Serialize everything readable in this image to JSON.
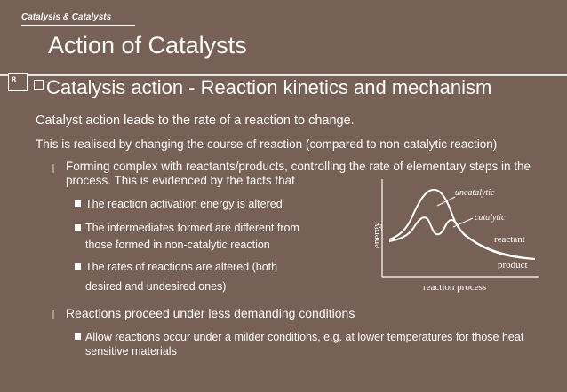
{
  "header": {
    "section": "Catalysis & Catalysts",
    "title": "Action of Catalysts",
    "slide_number": "8"
  },
  "subtitle": "Catalysis action - Reaction kinetics and mechanism",
  "paragraphs": [
    "Catalyst action leads to the rate of a reaction to change.",
    "This is realised by changing the course of reaction (compared to non-catalytic reaction)"
  ],
  "bullets": [
    {
      "text": "Forming complex with reactants/products, controlling the rate of elementary steps in the process. This is evidenced by the facts that",
      "items": [
        "The reaction activation energy is altered",
        "The intermediates formed are different from",
        "those formed in non-catalytic reaction",
        "The rates of reactions are altered (both",
        "desired and undesired ones)"
      ]
    },
    {
      "text": "Reactions proceed under less demanding conditions",
      "items": [
        "Allow reactions occur under a milder conditions, e.g. at lower temperatures for those heat sensitive materials"
      ]
    }
  ],
  "diagram": {
    "ylabel": "energy",
    "xlabel": "reaction process",
    "labels": {
      "uncatalytic": "uncatalytic",
      "catalytic": "catalytic",
      "reactant": "reactant",
      "product": "product"
    }
  },
  "colors": {
    "background": "#776055",
    "text": "#ffffff",
    "rule": "#e8e2dc"
  }
}
